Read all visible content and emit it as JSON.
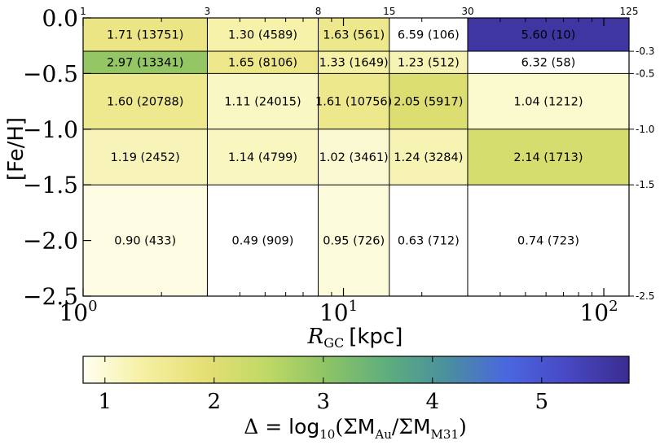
{
  "chart_data": {
    "type": "heatmap",
    "title": "",
    "xlabel_symbol": "R",
    "xlabel_sub": "GC",
    "xlabel_unit": "[kpc]",
    "ylabel": "[Fe/H]",
    "x_scale": "log",
    "xlim": [
      1,
      125
    ],
    "ylim": [
      -2.5,
      0
    ],
    "x_bin_edges": [
      1,
      3,
      8,
      15,
      30,
      125
    ],
    "y_bin_edges": [
      0,
      -0.3,
      -0.5,
      -1.0,
      -1.5,
      -2.5
    ],
    "x_edge_labels": [
      "1",
      "3",
      "8",
      "15",
      "30",
      "125"
    ],
    "y_edge_labels": [
      "-0.3",
      "-0.5",
      "-1.0",
      "-1.5",
      "-2.5"
    ],
    "x_major_ticks": [
      1,
      10,
      100
    ],
    "x_major_tick_labels": [
      {
        "base": "10",
        "exp": "0"
      },
      {
        "base": "10",
        "exp": "1"
      },
      {
        "base": "10",
        "exp": "2"
      }
    ],
    "y_major_ticks": [
      0,
      -0.5,
      -1.0,
      -1.5,
      -2.0,
      -2.5
    ],
    "y_major_tick_labels": [
      "0.0",
      "−0.5",
      "−1.0",
      "−1.5",
      "−2.0",
      "−2.5"
    ],
    "cells": [
      {
        "x": [
          1,
          3
        ],
        "y": [
          0,
          -0.3
        ],
        "delta": 1.71,
        "count": 13751,
        "label": "1.71 (13751)"
      },
      {
        "x": [
          3,
          8
        ],
        "y": [
          0,
          -0.3
        ],
        "delta": 1.3,
        "count": 4589,
        "label": "1.30 (4589)"
      },
      {
        "x": [
          8,
          15
        ],
        "y": [
          0,
          -0.3
        ],
        "delta": 1.63,
        "count": 561,
        "label": "1.63 (561)"
      },
      {
        "x": [
          15,
          30
        ],
        "y": [
          0,
          -0.3
        ],
        "delta": 6.59,
        "count": 106,
        "label": "6.59 (106)"
      },
      {
        "x": [
          30,
          125
        ],
        "y": [
          0,
          -0.3
        ],
        "delta": 5.6,
        "count": 10,
        "label": "5.60 (10)"
      },
      {
        "x": [
          1,
          3
        ],
        "y": [
          -0.3,
          -0.5
        ],
        "delta": 2.97,
        "count": 13341,
        "label": "2.97 (13341)"
      },
      {
        "x": [
          3,
          8
        ],
        "y": [
          -0.3,
          -0.5
        ],
        "delta": 1.65,
        "count": 8106,
        "label": "1.65 (8106)"
      },
      {
        "x": [
          8,
          15
        ],
        "y": [
          -0.3,
          -0.5
        ],
        "delta": 1.33,
        "count": 1649,
        "label": "1.33 (1649)"
      },
      {
        "x": [
          15,
          30
        ],
        "y": [
          -0.3,
          -0.5
        ],
        "delta": 1.23,
        "count": 512,
        "label": "1.23 (512)"
      },
      {
        "x": [
          30,
          125
        ],
        "y": [
          -0.3,
          -0.5
        ],
        "delta": 6.32,
        "count": 58,
        "label": "6.32 (58)"
      },
      {
        "x": [
          1,
          3
        ],
        "y": [
          -0.5,
          -1.0
        ],
        "delta": 1.6,
        "count": 20788,
        "label": "1.60 (20788)"
      },
      {
        "x": [
          3,
          8
        ],
        "y": [
          -0.5,
          -1.0
        ],
        "delta": 1.11,
        "count": 24015,
        "label": "1.11 (24015)"
      },
      {
        "x": [
          8,
          15
        ],
        "y": [
          -0.5,
          -1.0
        ],
        "delta": 1.61,
        "count": 10756,
        "label": "1.61 (10756)"
      },
      {
        "x": [
          15,
          30
        ],
        "y": [
          -0.5,
          -1.0
        ],
        "delta": 2.05,
        "count": 5917,
        "label": "2.05 (5917)"
      },
      {
        "x": [
          30,
          125
        ],
        "y": [
          -0.5,
          -1.0
        ],
        "delta": 1.04,
        "count": 1212,
        "label": "1.04 (1212)"
      },
      {
        "x": [
          1,
          3
        ],
        "y": [
          -1.0,
          -1.5
        ],
        "delta": 1.19,
        "count": 2452,
        "label": "1.19 (2452)"
      },
      {
        "x": [
          3,
          8
        ],
        "y": [
          -1.0,
          -1.5
        ],
        "delta": 1.14,
        "count": 4799,
        "label": "1.14 (4799)"
      },
      {
        "x": [
          8,
          15
        ],
        "y": [
          -1.0,
          -1.5
        ],
        "delta": 1.02,
        "count": 3461,
        "label": "1.02 (3461)"
      },
      {
        "x": [
          15,
          30
        ],
        "y": [
          -1.0,
          -1.5
        ],
        "delta": 1.24,
        "count": 3284,
        "label": "1.24 (3284)"
      },
      {
        "x": [
          30,
          125
        ],
        "y": [
          -1.0,
          -1.5
        ],
        "delta": 2.14,
        "count": 1713,
        "label": "2.14 (1713)"
      },
      {
        "x": [
          1,
          3
        ],
        "y": [
          -1.5,
          -2.5
        ],
        "delta": 0.9,
        "count": 433,
        "label": "0.90 (433)"
      },
      {
        "x": [
          3,
          8
        ],
        "y": [
          -1.5,
          -2.5
        ],
        "delta": 0.49,
        "count": 909,
        "label": "0.49 (909)"
      },
      {
        "x": [
          8,
          15
        ],
        "y": [
          -1.5,
          -2.5
        ],
        "delta": 0.95,
        "count": 726,
        "label": "0.95 (726)"
      },
      {
        "x": [
          15,
          30
        ],
        "y": [
          -1.5,
          -2.5
        ],
        "delta": 0.63,
        "count": 712,
        "label": "0.63 (712)"
      },
      {
        "x": [
          30,
          125
        ],
        "y": [
          -1.5,
          -2.5
        ],
        "delta": 0.74,
        "count": 723,
        "label": "0.74 (723)"
      }
    ],
    "colorbar": {
      "range": [
        0.8,
        5.8
      ],
      "ticks": [
        1,
        2,
        3,
        4,
        5
      ],
      "tick_labels": [
        "1",
        "2",
        "3",
        "4",
        "5"
      ],
      "colors": [
        "#fffff0",
        "#f5f0a2",
        "#e6df75",
        "#c0d966",
        "#8fc466",
        "#5eae7d",
        "#4a8f9e",
        "#4a66e0",
        "#4848c2",
        "#3a2c90"
      ],
      "label_parts": [
        "Δ = ",
        "log",
        "10",
        "(Σ",
        "M",
        "Au",
        "/Σ",
        "M",
        "M31",
        ")"
      ]
    }
  }
}
